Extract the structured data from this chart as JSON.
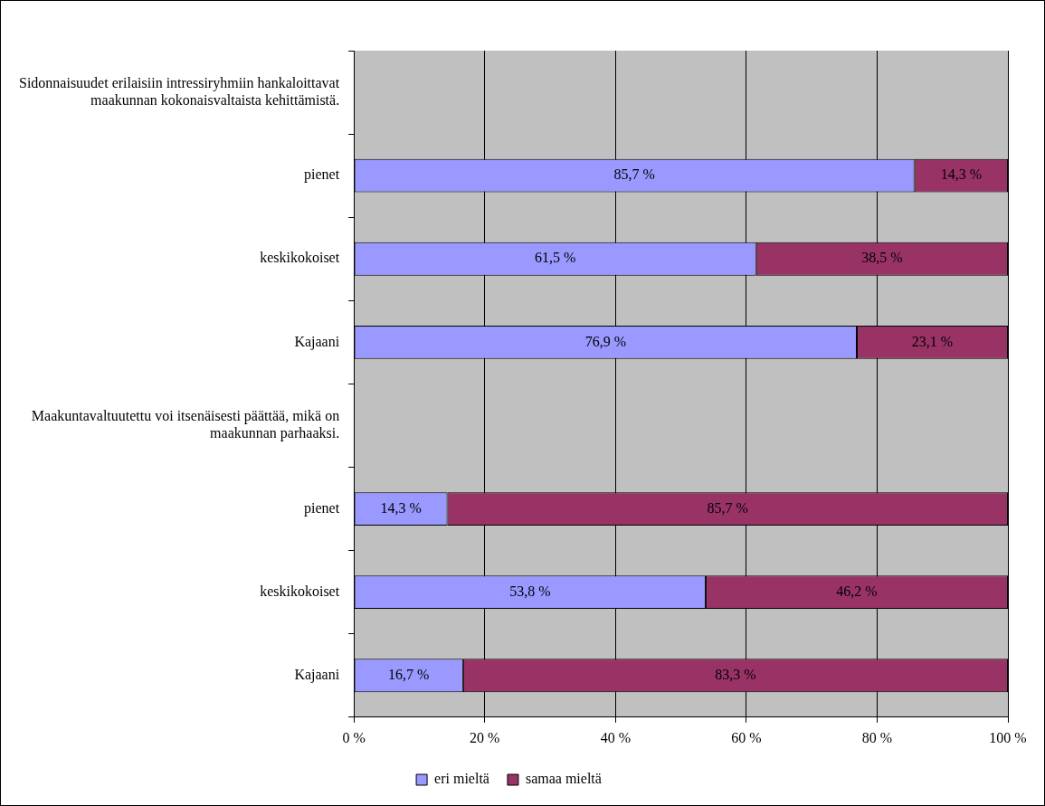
{
  "chart_data": {
    "type": "bar",
    "orientation": "horizontal",
    "stacked": true,
    "categories": [
      "Sidonnaisuudet erilaisiin intressiryhmiin hankaloittavat maakunnan kokonaisvaltaista kehittämistä.",
      "pienet",
      "keskikokoiset",
      "Kajaani",
      "Maakuntavaltuutettu voi itsenäisesti päättää, mikä on maakunnan parhaaksi.",
      "pienet",
      "keskikokoiset",
      "Kajaani"
    ],
    "series": [
      {
        "name": "eri mieltä",
        "color": "#9999ff",
        "values": [
          null,
          85.7,
          61.5,
          76.9,
          null,
          14.3,
          53.8,
          16.7
        ],
        "value_labels": [
          null,
          "85,7 %",
          "61,5 %",
          "76,9 %",
          null,
          "14,3 %",
          "53,8 %",
          "16,7 %"
        ]
      },
      {
        "name": "samaa mieltä",
        "color": "#993366",
        "values": [
          null,
          14.3,
          38.5,
          23.1,
          null,
          85.7,
          46.2,
          83.3
        ],
        "value_labels": [
          null,
          "14,3 %",
          "38,5 %",
          "23,1 %",
          null,
          "85,7 %",
          "46,2 %",
          "83,3 %"
        ]
      }
    ],
    "xlim": [
      0,
      100
    ],
    "xticks": [
      {
        "value": 0,
        "label": "0 %"
      },
      {
        "value": 20,
        "label": "20 %"
      },
      {
        "value": 40,
        "label": "40 %"
      },
      {
        "value": 60,
        "label": "60 %"
      },
      {
        "value": 80,
        "label": "80 %"
      },
      {
        "value": 100,
        "label": "100 %"
      }
    ],
    "grid": "x",
    "legend": "bottom"
  }
}
